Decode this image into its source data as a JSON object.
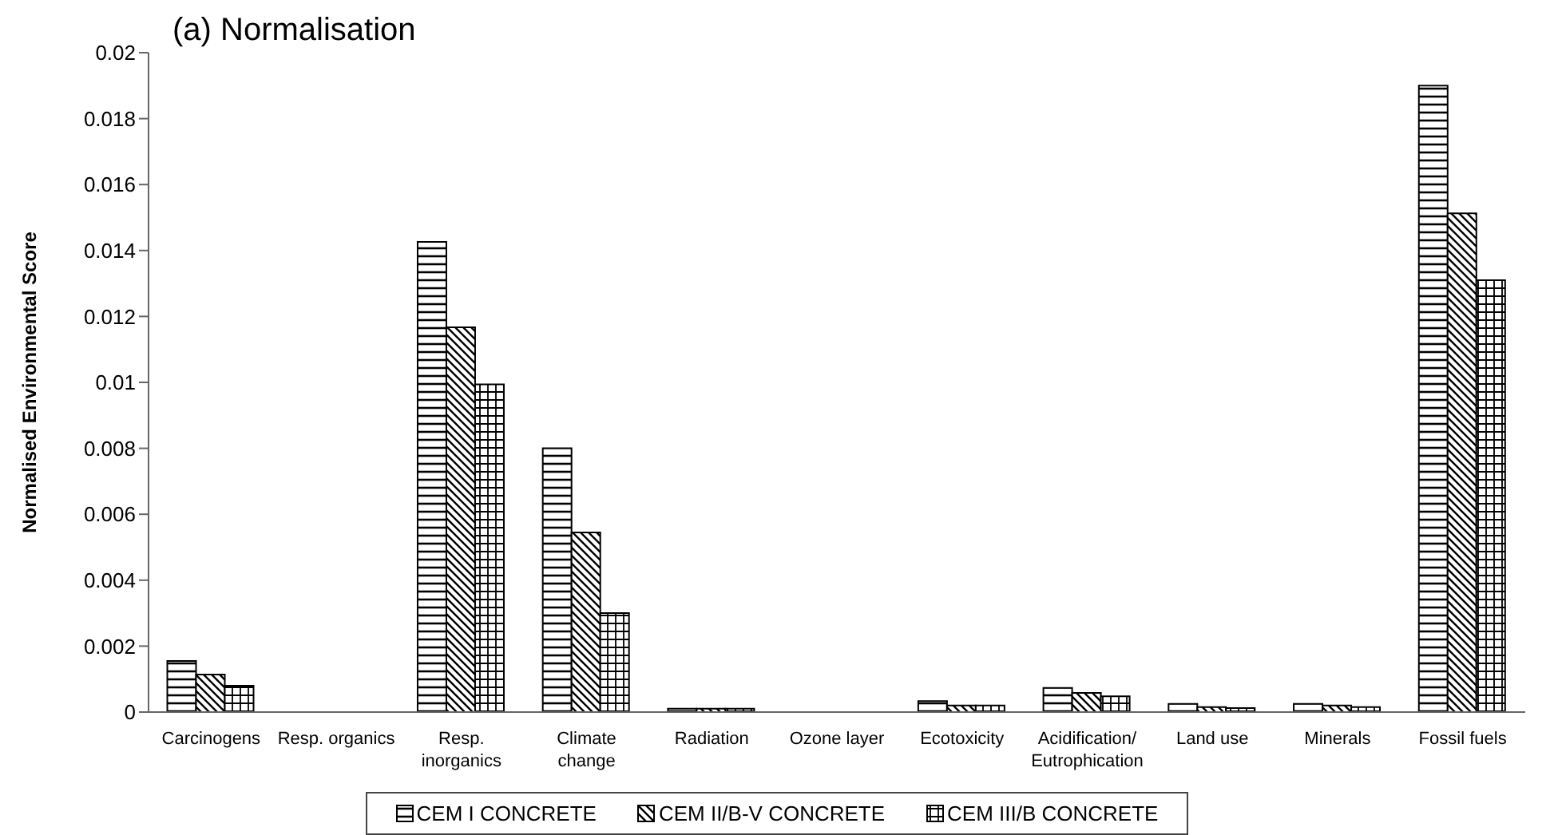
{
  "chart_data": {
    "type": "bar",
    "title": "(a) Normalisation",
    "ylabel": "Normalised Environmental Score",
    "categories": [
      "Carcinogens",
      "Resp. organics",
      "Resp. inorganics",
      "Climate change",
      "Radiation",
      "Ozone layer",
      "Ecotoxicity",
      "Acidification/ Eutrophication",
      "Land use",
      "Minerals",
      "Fossil fuels"
    ],
    "series": [
      {
        "name": "CEM I CONCRETE",
        "color": "#000000",
        "values": [
          0.00155,
          0,
          0.01426,
          0.008,
          0.0001,
          0,
          0.00033,
          0.00073,
          0.00025,
          0.00025,
          0.019
        ]
      },
      {
        "name": "CEM II/B-V CONCRETE",
        "color": "#000000",
        "values": [
          0.00114,
          0,
          0.01167,
          0.00545,
          0.0001,
          0,
          0.0002,
          0.00058,
          0.00015,
          0.0002,
          0.01513
        ]
      },
      {
        "name": "CEM III/B CONCRETE",
        "color": "#000000",
        "values": [
          0.0008,
          0,
          0.00994,
          0.003,
          0.0001,
          0,
          0.0002,
          0.00048,
          0.00012,
          0.00015,
          0.0131
        ]
      }
    ],
    "ylim": [
      0,
      0.02
    ],
    "yticks": [
      0,
      0.002,
      0.004,
      0.006,
      0.008,
      0.01,
      0.012,
      0.014,
      0.016,
      0.018,
      0.02
    ],
    "grid": false,
    "legend": "bottom"
  }
}
